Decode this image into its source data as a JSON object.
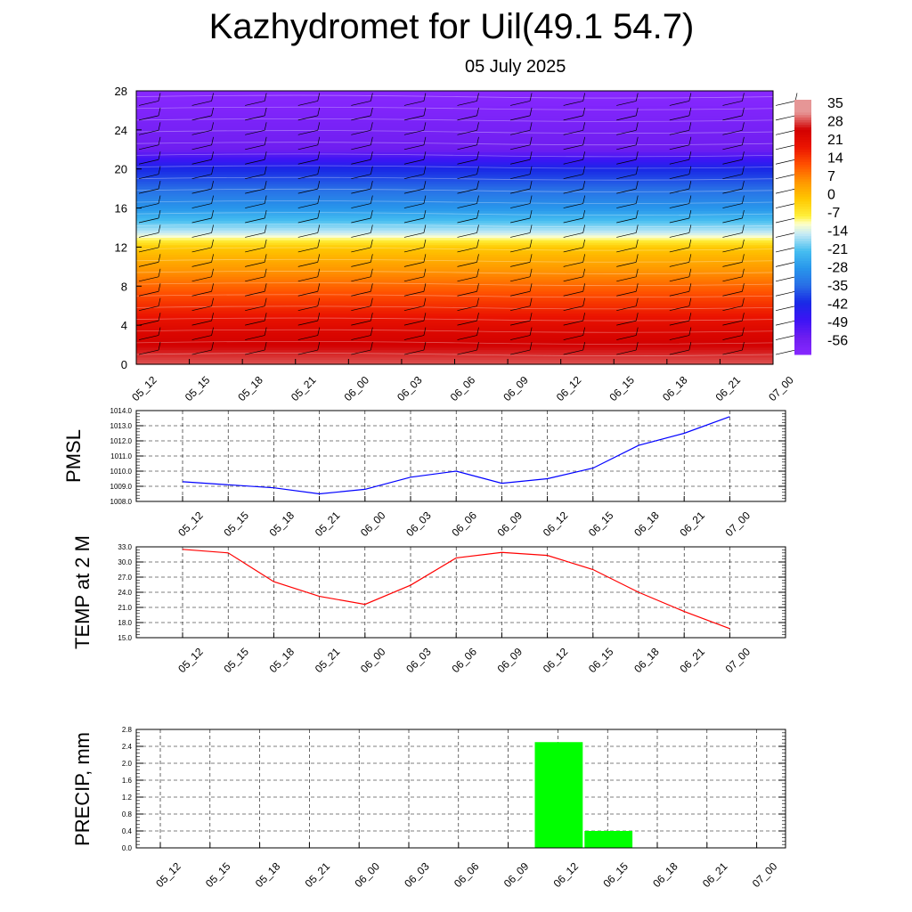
{
  "header": {
    "title": "Kazhydromet for Uil(49.1 54.7)",
    "subtitle": "05 July 2025"
  },
  "colors": {
    "pmsl_line": "#0000ff",
    "temp_line": "#ff0000",
    "precip_bar": "#00ff00",
    "grid": "#000000"
  },
  "chart_data": [
    {
      "type": "heatmap",
      "title": "",
      "ylabel": "",
      "ylim": [
        0,
        28
      ],
      "yticks": [
        "0",
        "4",
        "8",
        "12",
        "16",
        "20",
        "24",
        "28"
      ],
      "x": [
        "05_12",
        "05_15",
        "05_18",
        "05_21",
        "06_00",
        "06_03",
        "06_06",
        "06_09",
        "06_12",
        "06_15",
        "06_18",
        "06_21",
        "07_00"
      ],
      "colorbar": {
        "labels": [
          "35",
          "28",
          "21",
          "14",
          "7",
          "0",
          "-7",
          "-14",
          "-21",
          "-28",
          "-35",
          "-42",
          "-49",
          "-56"
        ]
      },
      "description_levels": [
        {
          "y": 0,
          "value": 32
        },
        {
          "y": 4,
          "value": 24
        },
        {
          "y": 8,
          "value": 12
        },
        {
          "y": 12,
          "value": 0
        },
        {
          "y": 13.5,
          "value": -14
        },
        {
          "y": 16,
          "value": -28
        },
        {
          "y": 20,
          "value": -42
        },
        {
          "y": 22,
          "value": -56
        },
        {
          "y": 28,
          "value": -63
        }
      ]
    },
    {
      "type": "line",
      "ylabel": "PMSL",
      "x": [
        "05_12",
        "05_15",
        "05_18",
        "05_21",
        "06_00",
        "06_03",
        "06_06",
        "06_09",
        "06_12",
        "06_15",
        "06_18",
        "06_21",
        "07_00"
      ],
      "values": [
        1009.3,
        1009.1,
        1008.9,
        1008.5,
        1008.8,
        1009.6,
        1010.0,
        1009.2,
        1009.5,
        1010.2,
        1011.7,
        1012.5,
        1013.6
      ],
      "ylim": [
        1008.0,
        1014.0
      ],
      "yticks": [
        "1008.0",
        "1009.0",
        "1010.0",
        "1011.0",
        "1012.0",
        "1013.0",
        "1014.0"
      ]
    },
    {
      "type": "line",
      "ylabel": "TEMP at 2 M",
      "x": [
        "05_12",
        "05_15",
        "05_18",
        "05_21",
        "06_00",
        "06_03",
        "06_06",
        "06_09",
        "06_12",
        "06_15",
        "06_18",
        "06_21",
        "07_00"
      ],
      "values": [
        32.5,
        31.8,
        26.1,
        23.2,
        21.6,
        25.4,
        30.8,
        31.9,
        31.3,
        28.5,
        24.0,
        20.2,
        16.8
      ],
      "ylim": [
        15.0,
        33.0
      ],
      "yticks": [
        "15.0",
        "18.0",
        "21.0",
        "24.0",
        "27.0",
        "30.0",
        "33.0"
      ]
    },
    {
      "type": "bar",
      "ylabel": "PRECIP, mm",
      "categories": [
        "05_12",
        "05_15",
        "05_18",
        "05_21",
        "06_00",
        "06_03",
        "06_06",
        "06_09",
        "06_12",
        "06_15",
        "06_18",
        "06_21",
        "07_00"
      ],
      "values": [
        0,
        0,
        0,
        0,
        0,
        0,
        0,
        0,
        2.5,
        0.4,
        0,
        0,
        0
      ],
      "ylim": [
        0.0,
        2.8
      ],
      "yticks": [
        "0.0",
        "0.4",
        "0.8",
        "1.2",
        "1.6",
        "2.0",
        "2.4",
        "2.8"
      ]
    }
  ]
}
